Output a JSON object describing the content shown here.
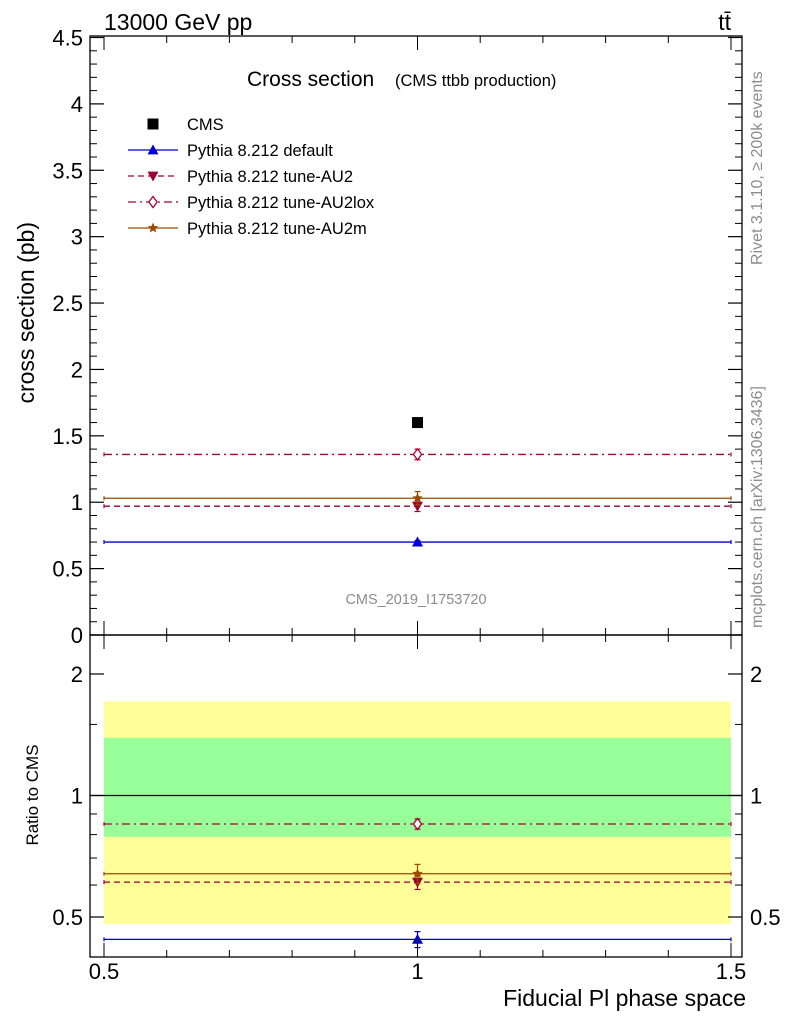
{
  "header": {
    "energy_label": "13000 GeV pp",
    "process_label": "tt̄"
  },
  "side_text": {
    "rivet": "Rivet 3.1.10, ≥ 200k events",
    "mcplots": "mcplots.cern.ch [arXiv:1306.3436]"
  },
  "chart_data": [
    {
      "type": "scatter",
      "panel": "main",
      "title": "Cross section",
      "subtitle": "(CMS ttbb production)",
      "ylabel": "cross section (pb)",
      "xlabel": "",
      "xlim": [
        0.5,
        1.5
      ],
      "ylim": [
        0,
        4.5
      ],
      "y_ticks": [
        0,
        0.5,
        1,
        1.5,
        2,
        2.5,
        3,
        3.5,
        4,
        4.5
      ],
      "y_tick_labels": [
        "0",
        "0.5",
        "1",
        "1.5",
        "2",
        "2.5",
        "3",
        "3.5",
        "4",
        "4.5"
      ],
      "annotation": "CMS_2019_I1753720",
      "legend_placement": "top-left",
      "data_series": {
        "name": "CMS",
        "color": "#000000",
        "x": [
          1
        ],
        "y": [
          1.6
        ]
      },
      "series": [
        {
          "name": "Pythia 8.212 default",
          "color": "#0000cc",
          "line": "solid",
          "marker": "triangle-up",
          "x": [
            1
          ],
          "y": [
            0.7
          ],
          "err": [
            0.01
          ]
        },
        {
          "name": "Pythia 8.212 tune-AU2",
          "color": "#990033",
          "line": "dashed",
          "marker": "triangle-down",
          "x": [
            1
          ],
          "y": [
            0.97
          ],
          "err": [
            0.04
          ]
        },
        {
          "name": "Pythia 8.212 tune-AU2lox",
          "color": "#aa0033",
          "line": "dashdot",
          "marker": "diamond-open",
          "x": [
            1
          ],
          "y": [
            1.36
          ],
          "err": [
            0.04
          ]
        },
        {
          "name": "Pythia 8.212 tune-AU2m",
          "color": "#994c00",
          "line": "solid",
          "marker": "star",
          "x": [
            1
          ],
          "y": [
            1.03
          ],
          "err": [
            0.05
          ]
        }
      ]
    },
    {
      "type": "scatter",
      "panel": "ratio",
      "ylabel": "Ratio to CMS",
      "xlabel": "Fiducial Pl phase space",
      "xlim": [
        0.5,
        1.5
      ],
      "ylim": [
        0.4,
        2.3
      ],
      "log_scale_y": true,
      "x_ticks": [
        0.5,
        1,
        1.5
      ],
      "x_tick_labels": [
        "0.5",
        "1",
        "1.5"
      ],
      "y_ticks": [
        0.5,
        1,
        2
      ],
      "y_tick_labels": [
        "0.5",
        "1",
        "2"
      ],
      "bands": [
        {
          "name": "outer",
          "color": "#ffff99",
          "y_low": 0.48,
          "y_high": 1.71
        },
        {
          "name": "inner",
          "color": "#99ff99",
          "y_low": 0.79,
          "y_high": 1.39
        }
      ],
      "reference_line": 1,
      "series": [
        {
          "name": "Pythia 8.212 default",
          "color": "#0000cc",
          "line": "solid",
          "marker": "triangle-up",
          "x": [
            1
          ],
          "y": [
            0.44
          ],
          "err": [
            0.02
          ]
        },
        {
          "name": "Pythia 8.212 tune-AU2",
          "color": "#990033",
          "line": "dashed",
          "marker": "triangle-down",
          "x": [
            1
          ],
          "y": [
            0.61
          ],
          "err": [
            0.025
          ]
        },
        {
          "name": "Pythia 8.212 tune-AU2lox",
          "color": "#aa0033",
          "line": "dashdot",
          "marker": "diamond-open",
          "x": [
            1
          ],
          "y": [
            0.85
          ],
          "err": [
            0.025
          ]
        },
        {
          "name": "Pythia 8.212 tune-AU2m",
          "color": "#994c00",
          "line": "solid",
          "marker": "star",
          "x": [
            1
          ],
          "y": [
            0.64
          ],
          "err": [
            0.035
          ]
        }
      ]
    }
  ]
}
